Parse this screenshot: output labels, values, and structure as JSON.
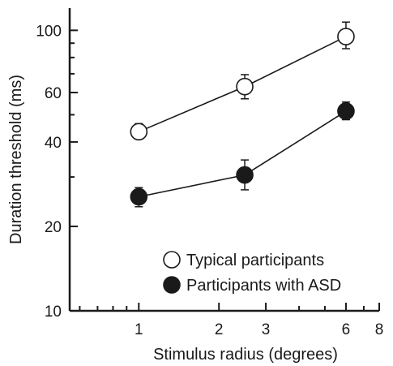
{
  "chart_data": {
    "type": "line",
    "xlabel": "Stimulus radius (degrees)",
    "ylabel": "Duration threshold (ms)",
    "x_scale": "log",
    "y_scale": "log",
    "xlim": [
      0.55,
      8
    ],
    "ylim": [
      10,
      120
    ],
    "x_tick_labels": [
      {
        "value": 1,
        "label": "1"
      },
      {
        "value": 2,
        "label": "2"
      },
      {
        "value": 3,
        "label": "3"
      },
      {
        "value": 6,
        "label": "6"
      },
      {
        "value": 8,
        "label": "8"
      }
    ],
    "x_minor_ticks": [
      0.6,
      0.7,
      0.8,
      0.9,
      4,
      5,
      7
    ],
    "y_tick_labels": [
      {
        "value": 10,
        "label": "10"
      },
      {
        "value": 20,
        "label": "20"
      },
      {
        "value": 40,
        "label": "40"
      },
      {
        "value": 60,
        "label": "60"
      },
      {
        "value": 100,
        "label": "100"
      }
    ],
    "y_minor_ticks": [
      30,
      50,
      70,
      80,
      90
    ],
    "grid": false,
    "legend_position": "bottom-right",
    "series": [
      {
        "name": "Typical participants",
        "marker": "open-circle",
        "x": [
          1,
          2.5,
          6
        ],
        "y": [
          43.5,
          63,
          95
        ],
        "err_low": [
          41,
          57,
          86
        ],
        "err_high": [
          46.5,
          69.5,
          107
        ]
      },
      {
        "name": "Participants with ASD",
        "marker": "filled-circle",
        "x": [
          1,
          2.5,
          6
        ],
        "y": [
          25.5,
          30.5,
          51.5
        ],
        "err_low": [
          23.5,
          27,
          48
        ],
        "err_high": [
          27.5,
          34.5,
          55.5
        ]
      }
    ]
  }
}
